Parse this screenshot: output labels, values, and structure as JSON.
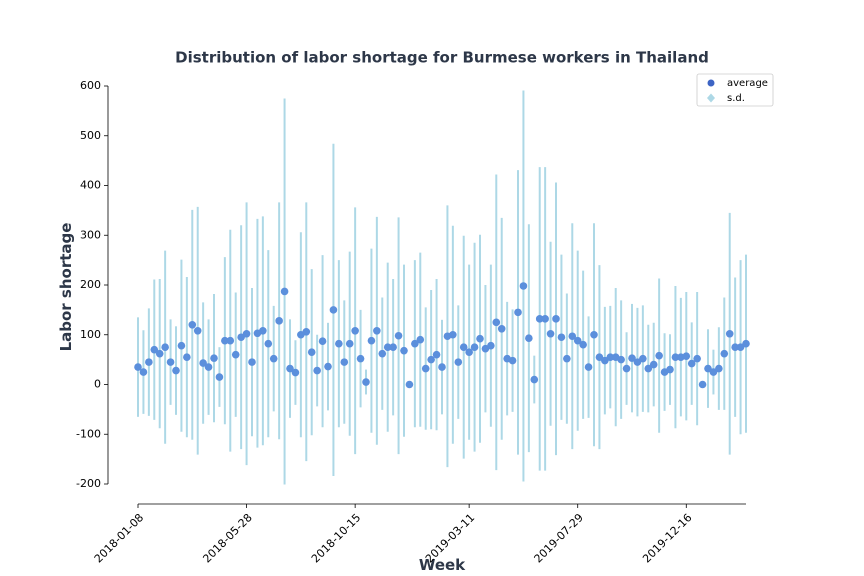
{
  "chart_data": {
    "type": "errorbar",
    "title": "Distribution of labor shortage for Burmese workers in Thailand",
    "x_label": "Week",
    "y_label": "Labor shortage",
    "x": [
      "2018-01-08",
      "2018-01-15",
      "2018-01-22",
      "2018-01-29",
      "2018-02-05",
      "2018-02-12",
      "2018-02-19",
      "2018-02-26",
      "2018-03-05",
      "2018-03-12",
      "2018-03-19",
      "2018-03-26",
      "2018-04-02",
      "2018-04-09",
      "2018-04-16",
      "2018-04-23",
      "2018-04-30",
      "2018-05-07",
      "2018-05-14",
      "2018-05-21",
      "2018-05-28",
      "2018-06-04",
      "2018-06-11",
      "2018-06-18",
      "2018-06-25",
      "2018-07-02",
      "2018-07-09",
      "2018-07-16",
      "2018-07-23",
      "2018-07-30",
      "2018-08-06",
      "2018-08-13",
      "2018-08-20",
      "2018-08-27",
      "2018-09-03",
      "2018-09-10",
      "2018-09-17",
      "2018-09-24",
      "2018-10-01",
      "2018-10-08",
      "2018-10-15",
      "2018-10-22",
      "2018-10-29",
      "2018-11-05",
      "2018-11-12",
      "2018-11-19",
      "2018-11-26",
      "2018-12-03",
      "2018-12-10",
      "2018-12-17",
      "2018-12-24",
      "2018-12-31",
      "2019-01-07",
      "2019-01-14",
      "2019-01-21",
      "2019-01-28",
      "2019-02-04",
      "2019-02-11",
      "2019-02-18",
      "2019-02-25",
      "2019-03-04",
      "2019-03-11",
      "2019-03-18",
      "2019-03-25",
      "2019-04-01",
      "2019-04-08",
      "2019-04-15",
      "2019-04-22",
      "2019-04-29",
      "2019-05-06",
      "2019-05-13",
      "2019-05-20",
      "2019-05-27",
      "2019-06-03",
      "2019-06-10",
      "2019-06-17",
      "2019-06-24",
      "2019-07-01",
      "2019-07-08",
      "2019-07-15",
      "2019-07-22",
      "2019-07-29",
      "2019-08-05",
      "2019-08-12",
      "2019-08-19",
      "2019-08-26",
      "2019-09-02",
      "2019-09-09",
      "2019-09-16",
      "2019-09-23",
      "2019-09-30",
      "2019-10-07",
      "2019-10-14",
      "2019-10-21",
      "2019-10-28",
      "2019-11-04",
      "2019-11-11",
      "2019-11-18",
      "2019-11-25",
      "2019-12-02",
      "2019-12-09",
      "2019-12-16",
      "2019-12-23",
      "2019-12-30",
      "2020-01-06",
      "2020-01-13",
      "2020-01-20",
      "2020-01-27",
      "2020-02-03",
      "2020-02-10",
      "2020-02-17",
      "2020-02-24",
      "2020-03-02"
    ],
    "series": [
      {
        "name": "average",
        "color": "#5b8fdc",
        "values": [
          35,
          25,
          45,
          70,
          62,
          75,
          45,
          28,
          78,
          55,
          120,
          108,
          43,
          35,
          53,
          15,
          88,
          88,
          60,
          95,
          102,
          45,
          103,
          108,
          82,
          52,
          128,
          187,
          32,
          24,
          100,
          106,
          65,
          28,
          87,
          36,
          150,
          82,
          45,
          82,
          108,
          52,
          5,
          88,
          108,
          62,
          75,
          75,
          98,
          68,
          0,
          82,
          90,
          32,
          50,
          60,
          35,
          97,
          100,
          45,
          75,
          65,
          75,
          92,
          72,
          78,
          125,
          112,
          52,
          48,
          145,
          198,
          93,
          10,
          132,
          132,
          102,
          132,
          95,
          52,
          97,
          88,
          80,
          35,
          100,
          55,
          48,
          55,
          55,
          50,
          32,
          53,
          45,
          52,
          32,
          40,
          58,
          25,
          30,
          55,
          55,
          57,
          42,
          52,
          0,
          32,
          25,
          32,
          62,
          102,
          75,
          75,
          82
        ]
      },
      {
        "name": "s.d.",
        "color": "#add8e6",
        "values": [
          100,
          84,
          108,
          141,
          150,
          194,
          86,
          89,
          173,
          161,
          231,
          249,
          122,
          96,
          129,
          60,
          168,
          223,
          125,
          225,
          264,
          149,
          230,
          230,
          188,
          106,
          238,
          388,
          99,
          65,
          206,
          260,
          167,
          72,
          173,
          88,
          334,
          168,
          124,
          185,
          248,
          98,
          25,
          185,
          229,
          113,
          170,
          137,
          238,
          173,
          0,
          168,
          175,
          123,
          140,
          152,
          95,
          263,
          219,
          114,
          224,
          176,
          210,
          209,
          128,
          163,
          297,
          223,
          114,
          103,
          286,
          393,
          229,
          48,
          305,
          305,
          185,
          274,
          166,
          131,
          227,
          181,
          149,
          102,
          224,
          185,
          108,
          103,
          139,
          119,
          73,
          109,
          109,
          107,
          88,
          84,
          155,
          78,
          71,
          143,
          119,
          129,
          83,
          134,
          0,
          79,
          45,
          83,
          113,
          243,
          140,
          175,
          179
        ]
      }
    ],
    "xlim": [
      "2018-01-08",
      "2020-03-02"
    ],
    "xticks": [
      "2018-01-08",
      "2018-05-28",
      "2018-10-15",
      "2019-03-11",
      "2019-07-29",
      "2019-12-16"
    ],
    "ylim": [
      -200,
      600
    ],
    "yticks": [
      -200,
      -100,
      0,
      100,
      200,
      300,
      400,
      500,
      600
    ],
    "legend": "upper right"
  }
}
